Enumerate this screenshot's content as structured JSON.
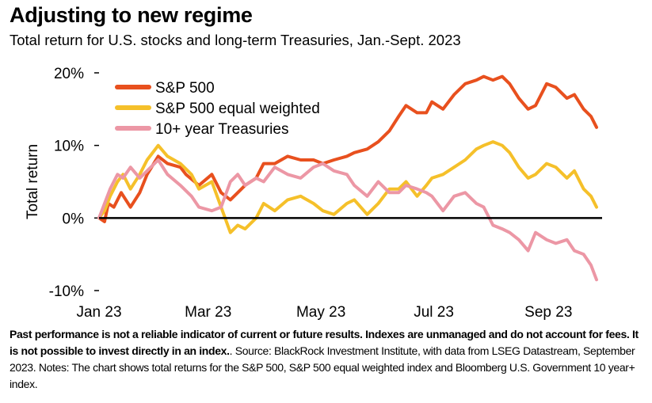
{
  "title": "Adjusting to new regime",
  "subtitle": "Total return for U.S. stocks and long-term Treasuries, Jan.-Sept. 2023",
  "footnote": {
    "disclaimer": "Past performance is not a reliable indicator of current or future results. Indexes are unmanaged and do not account for fees. It is not possible to invest directly in an index.",
    "source": ". Source: BlackRock Investment Institute, with data from LSEG Datastream, September 2023. Notes: The chart shows total returns for the S&P 500, S&P 500 equal  weighted index and Bloomberg U.S. Government 10 year+ index."
  },
  "chart_data": {
    "type": "line",
    "ylabel": "Total return",
    "ylim": [
      -10,
      20
    ],
    "yticks": [
      20,
      10,
      0,
      -10
    ],
    "ytick_labels": [
      "20%",
      "10%",
      "0%",
      "-10%"
    ],
    "xlim": [
      "2023-01-01",
      "2023-09-30"
    ],
    "xticks": [
      "2023-01-01",
      "2023-03-01",
      "2023-05-01",
      "2023-07-01",
      "2023-09-01"
    ],
    "xtick_labels": [
      "Jan 23",
      "Mar 23",
      "May 23",
      "Jul 23",
      "Sep 23"
    ],
    "legend_position": "top-left",
    "series": [
      {
        "name": "S&P 500",
        "color": "#E8501E",
        "points": [
          [
            "2023-01-01",
            0
          ],
          [
            "2023-01-04",
            -0.5
          ],
          [
            "2023-01-06",
            2
          ],
          [
            "2023-01-09",
            1.5
          ],
          [
            "2023-01-13",
            3.5
          ],
          [
            "2023-01-18",
            1.5
          ],
          [
            "2023-01-23",
            3.5
          ],
          [
            "2023-01-27",
            6
          ],
          [
            "2023-02-02",
            8.5
          ],
          [
            "2023-02-07",
            7.5
          ],
          [
            "2023-02-14",
            7
          ],
          [
            "2023-02-17",
            6
          ],
          [
            "2023-02-24",
            4.5
          ],
          [
            "2023-03-03",
            6
          ],
          [
            "2023-03-08",
            3.5
          ],
          [
            "2023-03-13",
            2.5
          ],
          [
            "2023-03-17",
            3.5
          ],
          [
            "2023-03-21",
            4.5
          ],
          [
            "2023-03-27",
            5.5
          ],
          [
            "2023-03-31",
            7.5
          ],
          [
            "2023-04-06",
            7.5
          ],
          [
            "2023-04-13",
            8.5
          ],
          [
            "2023-04-20",
            8
          ],
          [
            "2023-04-27",
            8
          ],
          [
            "2023-05-02",
            7.5
          ],
          [
            "2023-05-08",
            8
          ],
          [
            "2023-05-15",
            8.5
          ],
          [
            "2023-05-19",
            9
          ],
          [
            "2023-05-26",
            9.5
          ],
          [
            "2023-06-01",
            10.5
          ],
          [
            "2023-06-07",
            12
          ],
          [
            "2023-06-12",
            14
          ],
          [
            "2023-06-16",
            15.5
          ],
          [
            "2023-06-22",
            14.5
          ],
          [
            "2023-06-27",
            14.5
          ],
          [
            "2023-06-30",
            16
          ],
          [
            "2023-07-06",
            15
          ],
          [
            "2023-07-12",
            17
          ],
          [
            "2023-07-18",
            18.5
          ],
          [
            "2023-07-24",
            19
          ],
          [
            "2023-07-28",
            19.5
          ],
          [
            "2023-08-02",
            19
          ],
          [
            "2023-08-07",
            19.5
          ],
          [
            "2023-08-11",
            18.5
          ],
          [
            "2023-08-16",
            16.5
          ],
          [
            "2023-08-21",
            15
          ],
          [
            "2023-08-25",
            15.5
          ],
          [
            "2023-08-31",
            18.5
          ],
          [
            "2023-09-05",
            18
          ],
          [
            "2023-09-11",
            16.5
          ],
          [
            "2023-09-15",
            17
          ],
          [
            "2023-09-20",
            15
          ],
          [
            "2023-09-24",
            14
          ],
          [
            "2023-09-27",
            12.5
          ]
        ]
      },
      {
        "name": "S&P 500 equal weighted",
        "color": "#F5C02A",
        "points": [
          [
            "2023-01-01",
            0
          ],
          [
            "2023-01-04",
            1
          ],
          [
            "2023-01-07",
            3
          ],
          [
            "2023-01-11",
            5
          ],
          [
            "2023-01-14",
            6
          ],
          [
            "2023-01-18",
            4
          ],
          [
            "2023-01-23",
            6
          ],
          [
            "2023-01-27",
            8
          ],
          [
            "2023-02-02",
            10
          ],
          [
            "2023-02-07",
            8.5
          ],
          [
            "2023-02-14",
            7.5
          ],
          [
            "2023-02-20",
            6
          ],
          [
            "2023-02-24",
            4
          ],
          [
            "2023-03-03",
            5
          ],
          [
            "2023-03-08",
            1.5
          ],
          [
            "2023-03-13",
            -2
          ],
          [
            "2023-03-17",
            -1
          ],
          [
            "2023-03-21",
            -1.5
          ],
          [
            "2023-03-27",
            0
          ],
          [
            "2023-03-31",
            2
          ],
          [
            "2023-04-06",
            1
          ],
          [
            "2023-04-13",
            2.5
          ],
          [
            "2023-04-20",
            3
          ],
          [
            "2023-04-27",
            2
          ],
          [
            "2023-05-02",
            1
          ],
          [
            "2023-05-08",
            0.5
          ],
          [
            "2023-05-15",
            2
          ],
          [
            "2023-05-19",
            2.5
          ],
          [
            "2023-05-26",
            0.5
          ],
          [
            "2023-06-01",
            2
          ],
          [
            "2023-06-07",
            4
          ],
          [
            "2023-06-12",
            4
          ],
          [
            "2023-06-16",
            5
          ],
          [
            "2023-06-22",
            3
          ],
          [
            "2023-06-27",
            4.5
          ],
          [
            "2023-06-30",
            5.5
          ],
          [
            "2023-07-06",
            6
          ],
          [
            "2023-07-12",
            7
          ],
          [
            "2023-07-18",
            8
          ],
          [
            "2023-07-24",
            9.5
          ],
          [
            "2023-07-28",
            10
          ],
          [
            "2023-08-02",
            10.5
          ],
          [
            "2023-08-07",
            10
          ],
          [
            "2023-08-11",
            9
          ],
          [
            "2023-08-16",
            7
          ],
          [
            "2023-08-21",
            5.5
          ],
          [
            "2023-08-25",
            6
          ],
          [
            "2023-08-31",
            7.5
          ],
          [
            "2023-09-05",
            7
          ],
          [
            "2023-09-11",
            5.5
          ],
          [
            "2023-09-15",
            6.5
          ],
          [
            "2023-09-20",
            4
          ],
          [
            "2023-09-24",
            3
          ],
          [
            "2023-09-27",
            1.5
          ]
        ]
      },
      {
        "name": "10+ year Treasuries",
        "color": "#EC97A5",
        "points": [
          [
            "2023-01-01",
            0
          ],
          [
            "2023-01-04",
            2
          ],
          [
            "2023-01-07",
            4
          ],
          [
            "2023-01-11",
            6
          ],
          [
            "2023-01-14",
            5.5
          ],
          [
            "2023-01-18",
            7
          ],
          [
            "2023-01-23",
            5.5
          ],
          [
            "2023-01-27",
            6.5
          ],
          [
            "2023-02-02",
            8
          ],
          [
            "2023-02-07",
            6
          ],
          [
            "2023-02-14",
            4.5
          ],
          [
            "2023-02-20",
            3
          ],
          [
            "2023-02-24",
            1.5
          ],
          [
            "2023-03-03",
            1
          ],
          [
            "2023-03-08",
            1.5
          ],
          [
            "2023-03-13",
            5
          ],
          [
            "2023-03-17",
            6
          ],
          [
            "2023-03-21",
            4.5
          ],
          [
            "2023-03-27",
            5.5
          ],
          [
            "2023-03-31",
            5
          ],
          [
            "2023-04-06",
            7
          ],
          [
            "2023-04-13",
            6
          ],
          [
            "2023-04-20",
            5.5
          ],
          [
            "2023-04-27",
            7
          ],
          [
            "2023-05-02",
            7.5
          ],
          [
            "2023-05-08",
            6.5
          ],
          [
            "2023-05-15",
            6
          ],
          [
            "2023-05-19",
            4.5
          ],
          [
            "2023-05-26",
            3
          ],
          [
            "2023-06-01",
            5
          ],
          [
            "2023-06-07",
            3.5
          ],
          [
            "2023-06-12",
            3.5
          ],
          [
            "2023-06-16",
            4.5
          ],
          [
            "2023-06-22",
            4
          ],
          [
            "2023-06-27",
            3.5
          ],
          [
            "2023-06-30",
            3
          ],
          [
            "2023-07-06",
            1
          ],
          [
            "2023-07-12",
            3
          ],
          [
            "2023-07-18",
            3.5
          ],
          [
            "2023-07-24",
            2
          ],
          [
            "2023-07-28",
            1.5
          ],
          [
            "2023-08-02",
            -1
          ],
          [
            "2023-08-07",
            -1.5
          ],
          [
            "2023-08-11",
            -2
          ],
          [
            "2023-08-16",
            -3
          ],
          [
            "2023-08-21",
            -4.5
          ],
          [
            "2023-08-25",
            -2
          ],
          [
            "2023-08-31",
            -3
          ],
          [
            "2023-09-05",
            -3.5
          ],
          [
            "2023-09-11",
            -3
          ],
          [
            "2023-09-15",
            -4.5
          ],
          [
            "2023-09-20",
            -5
          ],
          [
            "2023-09-24",
            -6.5
          ],
          [
            "2023-09-27",
            -8.5
          ]
        ]
      }
    ]
  }
}
